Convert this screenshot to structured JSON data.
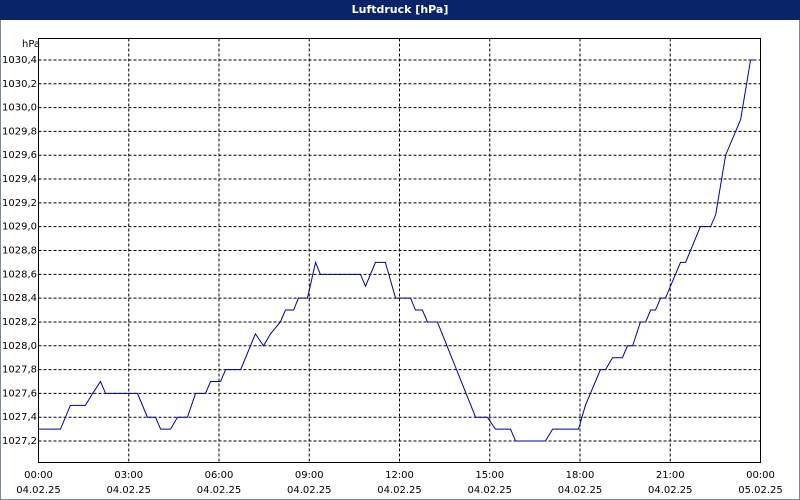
{
  "chart_data": {
    "type": "line",
    "title": "Luftdruck [hPa]",
    "y_label": "hPa",
    "color": "#0000a0",
    "grid": true,
    "xlim": [
      0,
      24
    ],
    "xticks": [
      {
        "value": 0,
        "label": "00:00"
      },
      {
        "value": 3,
        "label": "03:00"
      },
      {
        "value": 6,
        "label": "06:00"
      },
      {
        "value": 9,
        "label": "09:00"
      },
      {
        "value": 12,
        "label": "12:00"
      },
      {
        "value": 15,
        "label": "15:00"
      },
      {
        "value": 18,
        "label": "18:00"
      },
      {
        "value": 21,
        "label": "21:00"
      },
      {
        "value": 24,
        "label": "00:00"
      }
    ],
    "xtick_dates": [
      "04.02.25",
      "04.02.25",
      "04.02.25",
      "04.02.25",
      "04.02.25",
      "04.02.25",
      "04.02.25",
      "04.02.25",
      "05.02.25"
    ],
    "ylim": [
      1027.02,
      1030.58
    ],
    "yticks": [
      {
        "value": 1027.2,
        "label": "1027,2"
      },
      {
        "value": 1027.4,
        "label": "1027,4"
      },
      {
        "value": 1027.6,
        "label": "1027,6"
      },
      {
        "value": 1027.8,
        "label": "1027,8"
      },
      {
        "value": 1028.0,
        "label": "1028,0"
      },
      {
        "value": 1028.2,
        "label": "1028,2"
      },
      {
        "value": 1028.4,
        "label": "1028,4"
      },
      {
        "value": 1028.6,
        "label": "1028,6"
      },
      {
        "value": 1028.8,
        "label": "1028,8"
      },
      {
        "value": 1029.0,
        "label": "1029,0"
      },
      {
        "value": 1029.2,
        "label": "1029,2"
      },
      {
        "value": 1029.4,
        "label": "1029,4"
      },
      {
        "value": 1029.6,
        "label": "1029,6"
      },
      {
        "value": 1029.8,
        "label": "1029,8"
      },
      {
        "value": 1030.0,
        "label": "1030,0"
      },
      {
        "value": 1030.2,
        "label": "1030,2"
      },
      {
        "value": 1030.4,
        "label": "1030,4"
      }
    ],
    "x": [
      0,
      0.73,
      1.06,
      1.56,
      1.8,
      2.06,
      2.23,
      3.29,
      3.62,
      3.89,
      4.06,
      4.39,
      4.62,
      4.95,
      5.22,
      5.55,
      5.72,
      6.05,
      6.22,
      6.72,
      7.21,
      7.48,
      7.71,
      8.04,
      8.21,
      8.48,
      8.64,
      8.94,
      9.21,
      9.37,
      10.7,
      10.87,
      11.2,
      11.53,
      11.87,
      12.37,
      12.53,
      12.76,
      12.93,
      13.26,
      14.53,
      14.92,
      15.19,
      15.69,
      15.86,
      16.85,
      17.09,
      17.95,
      18.18,
      18.68,
      18.85,
      19.08,
      19.41,
      19.58,
      19.75,
      20.01,
      20.18,
      20.35,
      20.51,
      20.68,
      20.84,
      21.34,
      21.51,
      22.0,
      22.34,
      22.51,
      22.84,
      23.34,
      23.67,
      23.83
    ],
    "values": [
      1027.3,
      1027.3,
      1027.5,
      1027.5,
      1027.6,
      1027.7,
      1027.6,
      1027.6,
      1027.4,
      1027.4,
      1027.3,
      1027.3,
      1027.4,
      1027.4,
      1027.6,
      1027.6,
      1027.7,
      1027.7,
      1027.8,
      1027.8,
      1028.1,
      1028.0,
      1028.1,
      1028.2,
      1028.3,
      1028.3,
      1028.4,
      1028.4,
      1028.7,
      1028.6,
      1028.6,
      1028.5,
      1028.7,
      1028.7,
      1028.4,
      1028.4,
      1028.3,
      1028.3,
      1028.2,
      1028.2,
      1027.4,
      1027.4,
      1027.3,
      1027.3,
      1027.2,
      1027.2,
      1027.3,
      1027.3,
      1027.5,
      1027.8,
      1027.8,
      1027.9,
      1027.9,
      1028.0,
      1028.0,
      1028.2,
      1028.2,
      1028.3,
      1028.3,
      1028.4,
      1028.4,
      1028.7,
      1028.7,
      1029.0,
      1029.0,
      1029.1,
      1029.6,
      1029.9,
      1030.4,
      1030.4
    ]
  }
}
